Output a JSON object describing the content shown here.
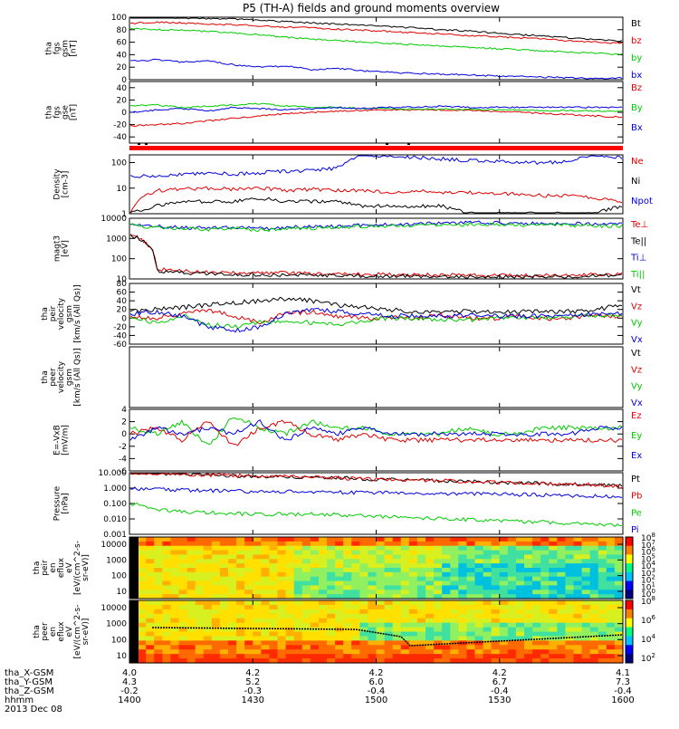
{
  "title": "P5 (TH-A) fields and ground moments overview",
  "panels": [
    {
      "id": "fgs_gsm",
      "type": "line",
      "ylabel": [
        "tha",
        "fgs",
        "gsm",
        "[nT]"
      ],
      "ylim": [
        0,
        100
      ],
      "ticks": [
        "0",
        "20",
        "40",
        "60",
        "80",
        "100"
      ],
      "legend": [
        {
          "text": "Bt",
          "color": "#000000"
        },
        {
          "text": "bz",
          "color": "#e00000"
        },
        {
          "text": "by",
          "color": "#00cc00"
        },
        {
          "text": "bx",
          "color": "#0000dd"
        }
      ],
      "series": [
        {
          "name": "Bt",
          "color": "#000000",
          "values": [
            100,
            100,
            99,
            98,
            97,
            95,
            93,
            91,
            89,
            87,
            85,
            83,
            80,
            78,
            75,
            72,
            70,
            67,
            64,
            62
          ]
        },
        {
          "name": "bz",
          "color": "#e00000",
          "values": [
            90,
            92,
            91,
            89,
            88,
            86,
            84,
            83,
            81,
            79,
            77,
            75,
            73,
            71,
            69,
            67,
            65,
            62,
            60,
            58
          ]
        },
        {
          "name": "by",
          "color": "#00cc00",
          "values": [
            82,
            80,
            79,
            77,
            75,
            72,
            68,
            65,
            63,
            60,
            58,
            56,
            54,
            52,
            50,
            48,
            46,
            44,
            42,
            40
          ]
        },
        {
          "name": "bx",
          "color": "#0000dd",
          "values": [
            30,
            32,
            28,
            30,
            24,
            20,
            22,
            16,
            18,
            14,
            12,
            10,
            9,
            8,
            6,
            5,
            4,
            3,
            2,
            3
          ]
        }
      ]
    },
    {
      "id": "fgs_gse",
      "type": "line",
      "ylabel": [
        "tha",
        "fgs",
        "gse",
        "[nT]"
      ],
      "ylim": [
        -50,
        50
      ],
      "ticks": [
        "-40",
        "-20",
        "0",
        "20",
        "40"
      ],
      "legend": [
        {
          "text": "Bz",
          "color": "#e00000"
        },
        {
          "text": "By",
          "color": "#00cc00"
        },
        {
          "text": "Bx",
          "color": "#0000dd"
        }
      ],
      "series": [
        {
          "name": "Bz",
          "color": "#e00000",
          "values": [
            -22,
            -20,
            -18,
            -14,
            -10,
            -6,
            -2,
            0,
            2,
            3,
            4,
            4,
            4,
            3,
            2,
            0,
            -2,
            -4,
            -6,
            -8
          ]
        },
        {
          "name": "By",
          "color": "#00cc00",
          "values": [
            10,
            12,
            8,
            10,
            12,
            14,
            10,
            8,
            8,
            6,
            6,
            5,
            5,
            5,
            4,
            4,
            3,
            3,
            2,
            2
          ]
        },
        {
          "name": "Bx",
          "color": "#0000dd",
          "values": [
            0,
            4,
            6,
            2,
            8,
            6,
            4,
            6,
            8,
            6,
            8,
            8,
            10,
            8,
            8,
            8,
            8,
            8,
            8,
            8
          ]
        }
      ]
    },
    {
      "id": "density",
      "type": "line",
      "ylabel": [
        "Density",
        "[cm-3]"
      ],
      "ylim": [
        1,
        200
      ],
      "log": true,
      "ticks": [
        "1",
        "10",
        "100"
      ],
      "legend": [
        {
          "text": "Ne",
          "color": "#e00000"
        },
        {
          "text": "Ni",
          "color": "#000000"
        },
        {
          "text": "Npot",
          "color": "#0000dd"
        }
      ],
      "series": [
        {
          "name": "Ne",
          "color": "#e00000",
          "values": [
            1,
            8,
            9,
            10,
            9,
            10,
            8,
            9,
            8,
            8,
            7,
            8,
            7,
            7,
            6,
            6,
            5,
            5,
            4,
            3
          ]
        },
        {
          "name": "Ni",
          "color": "#000000",
          "values": [
            1,
            2,
            3,
            3,
            3,
            4,
            3,
            3,
            3,
            2,
            2,
            2,
            2,
            1,
            1,
            1,
            1,
            1,
            1,
            2
          ]
        },
        {
          "name": "Npot",
          "color": "#0000dd",
          "values": [
            30,
            30,
            35,
            40,
            35,
            40,
            45,
            50,
            60,
            200,
            180,
            160,
            140,
            120,
            110,
            100,
            100,
            110,
            200,
            150
          ]
        }
      ]
    },
    {
      "id": "temperature",
      "type": "line",
      "ylabel": [
        "magt3",
        "[eV]"
      ],
      "ylim": [
        10,
        10000
      ],
      "log": true,
      "ticks": [
        "10",
        "100",
        "1000",
        "10000"
      ],
      "legend": [
        {
          "text": "Te⊥",
          "color": "#e00000"
        },
        {
          "text": "Te||",
          "color": "#000000"
        },
        {
          "text": "Ti⊥",
          "color": "#0000dd"
        },
        {
          "text": "Ti||",
          "color": "#00cc00"
        }
      ],
      "series": [
        {
          "name": "Te⊥",
          "color": "#e00000",
          "values": [
            1500,
            30,
            25,
            22,
            20,
            20,
            20,
            18,
            18,
            17,
            17,
            16,
            16,
            15,
            15,
            15,
            15,
            15,
            16,
            18
          ]
        },
        {
          "name": "Te||",
          "color": "#000000",
          "values": [
            1500,
            25,
            20,
            18,
            17,
            16,
            16,
            15,
            15,
            14,
            14,
            14,
            13,
            13,
            13,
            13,
            13,
            13,
            14,
            15
          ]
        },
        {
          "name": "Ti⊥",
          "color": "#0000dd",
          "values": [
            5000,
            4000,
            3500,
            3200,
            3800,
            3000,
            3500,
            3800,
            4000,
            4500,
            5000,
            5200,
            5500,
            6000,
            6000,
            5800,
            5500,
            5500,
            5200,
            5000
          ]
        },
        {
          "name": "Ti||",
          "color": "#00cc00",
          "values": [
            4500,
            3500,
            3000,
            2800,
            3200,
            2600,
            3000,
            3200,
            3500,
            4000,
            4200,
            4500,
            4800,
            5000,
            5000,
            4800,
            4500,
            4500,
            4200,
            4000
          ]
        }
      ]
    },
    {
      "id": "peir_velocity",
      "type": "line",
      "ylabel": [
        "tha",
        "peir",
        "velocity",
        "gsm",
        "[km/s (All Qs)]"
      ],
      "ylim": [
        -60,
        80
      ],
      "ticks": [
        "-60",
        "-40",
        "-20",
        "0",
        "20",
        "40",
        "60",
        "80"
      ],
      "legend": [
        {
          "text": "Vt",
          "color": "#000000"
        },
        {
          "text": "Vz",
          "color": "#e00000"
        },
        {
          "text": "Vy",
          "color": "#00cc00"
        },
        {
          "text": "Vx",
          "color": "#0000dd"
        }
      ],
      "series": [
        {
          "name": "Vt",
          "color": "#000000",
          "values": [
            15,
            20,
            25,
            30,
            35,
            40,
            45,
            40,
            30,
            25,
            20,
            15,
            15,
            15,
            15,
            15,
            15,
            15,
            20,
            30
          ]
        },
        {
          "name": "Vz",
          "color": "#e00000",
          "values": [
            5,
            0,
            10,
            20,
            5,
            -10,
            10,
            15,
            5,
            0,
            0,
            0,
            5,
            0,
            0,
            5,
            0,
            0,
            5,
            5
          ]
        },
        {
          "name": "Vy",
          "color": "#00cc00",
          "values": [
            0,
            -10,
            5,
            -15,
            -20,
            -10,
            -5,
            -10,
            -15,
            -5,
            0,
            0,
            -5,
            -5,
            0,
            0,
            0,
            5,
            5,
            10
          ]
        },
        {
          "name": "Vx",
          "color": "#0000dd",
          "values": [
            10,
            15,
            5,
            -20,
            -30,
            -20,
            10,
            20,
            15,
            10,
            5,
            5,
            5,
            5,
            5,
            5,
            5,
            5,
            10,
            10
          ]
        }
      ]
    },
    {
      "id": "peer_velocity",
      "type": "line",
      "ylabel": [
        "tha",
        "peer",
        "velocity",
        "gsm",
        "[km/s (All Qs)]"
      ],
      "ylim": [
        0,
        1
      ],
      "ticks": [],
      "legend": [
        {
          "text": "Vt",
          "color": "#000000"
        },
        {
          "text": "Vz",
          "color": "#e00000"
        },
        {
          "text": "Vy",
          "color": "#00cc00"
        },
        {
          "text": "Vx",
          "color": "#0000dd"
        }
      ],
      "series": []
    },
    {
      "id": "efield",
      "type": "line",
      "ylabel": [
        "E=-VxB",
        "[mV/m]"
      ],
      "ylim": [
        -6,
        4
      ],
      "ticks": [
        "-6",
        "-4",
        "-2",
        "0",
        "2",
        "4"
      ],
      "legend": [
        {
          "text": "Ez",
          "color": "#e00000"
        },
        {
          "text": "Ey",
          "color": "#00cc00"
        },
        {
          "text": "Ex",
          "color": "#0000dd"
        }
      ],
      "series": [
        {
          "name": "Ez",
          "color": "#e00000",
          "values": [
            0,
            1,
            -1,
            2,
            -2,
            1,
            2,
            0,
            -1,
            0,
            -1,
            -1,
            -1,
            -1,
            -1,
            -1,
            -1,
            -1,
            -1,
            -1
          ]
        },
        {
          "name": "Ey",
          "color": "#00cc00",
          "values": [
            1,
            0,
            2,
            -2,
            3,
            1,
            0,
            2,
            1,
            1,
            0,
            0,
            0,
            1,
            0,
            0,
            1,
            1,
            1,
            1
          ]
        },
        {
          "name": "Ex",
          "color": "#0000dd",
          "values": [
            -1,
            1,
            0,
            1,
            0,
            2,
            -1,
            1,
            0,
            1,
            0,
            0,
            0,
            0,
            0,
            0,
            0,
            0,
            1,
            1
          ]
        }
      ]
    },
    {
      "id": "pressure",
      "type": "line",
      "ylabel": [
        "Pressure",
        "[nPa]"
      ],
      "ylim": [
        0.001,
        10
      ],
      "log": true,
      "ticks": [
        "0.001",
        "0.010",
        "0.100",
        "1.000",
        "10.000"
      ],
      "legend": [
        {
          "text": "Pt",
          "color": "#000000"
        },
        {
          "text": "Pb",
          "color": "#e00000"
        },
        {
          "text": "Pe",
          "color": "#00cc00"
        },
        {
          "text": "Pi",
          "color": "#0000dd"
        }
      ],
      "series": [
        {
          "name": "Pt",
          "color": "#000000",
          "values": [
            10,
            9,
            8,
            7,
            6.5,
            6,
            5.5,
            5,
            4.5,
            4,
            3.6,
            3.3,
            3,
            2.7,
            2.4,
            2.2,
            2,
            1.8,
            1.6,
            1.5
          ]
        },
        {
          "name": "Pb",
          "color": "#e00000",
          "values": [
            10,
            9,
            8,
            7,
            6.5,
            6,
            5.5,
            5,
            4.5,
            4,
            3.6,
            3.3,
            3,
            2.7,
            2.4,
            2.2,
            2,
            1.8,
            1.6,
            1.2
          ]
        },
        {
          "name": "Pe",
          "color": "#00cc00",
          "values": [
            0.1,
            0.04,
            0.03,
            0.025,
            0.022,
            0.02,
            0.02,
            0.02,
            0.018,
            0.016,
            0.014,
            0.012,
            0.01,
            0.009,
            0.008,
            0.007,
            0.006,
            0.005,
            0.004,
            0.004
          ]
        },
        {
          "name": "Pi",
          "color": "#0000dd",
          "values": [
            0.9,
            0.8,
            0.75,
            0.7,
            0.65,
            0.6,
            0.6,
            0.55,
            0.55,
            0.5,
            0.5,
            0.48,
            0.45,
            0.43,
            0.4,
            0.38,
            0.35,
            0.33,
            0.3,
            0.25
          ]
        }
      ]
    },
    {
      "id": "peir_spec",
      "type": "heatmap",
      "ylabel": [
        "tha",
        "peir",
        "en",
        "eflux",
        "eV",
        "[eV/(cm^2-s-",
        "sr-eV)]"
      ],
      "ticks": [
        "10",
        "100",
        "1000",
        "10000"
      ],
      "cbar_ticks": [
        "10^8",
        "10^7",
        "10^6",
        "10^5",
        "10^4",
        "10^3",
        "10^2",
        "10^1",
        "10^0"
      ]
    },
    {
      "id": "peer_spec",
      "type": "heatmap",
      "ylabel": [
        "tha",
        "peer",
        "en",
        "eflux",
        "eV",
        "[eV/(cm^2-s-",
        "sr-eV)]"
      ],
      "ticks": [
        "10",
        "100",
        "1000",
        "10000"
      ],
      "cbar_ticks": [
        "10^8",
        "10^6",
        "10^4",
        "10^2"
      ]
    }
  ],
  "xaxis": {
    "rows": [
      {
        "label": "tha_X-GSM",
        "values": [
          "4.0",
          "4.2",
          "4.2",
          "4.2",
          "4.1"
        ]
      },
      {
        "label": "tha_Y-GSM",
        "values": [
          "4.3",
          "5.2",
          "6.0",
          "6.7",
          "7.3"
        ]
      },
      {
        "label": "tha_Z-GSM",
        "values": [
          "-0.2",
          "-0.3",
          "-0.4",
          "-0.4",
          "-0.4"
        ]
      },
      {
        "label": "hhmm",
        "values": [
          "1400",
          "1430",
          "1500",
          "1530",
          "1600"
        ]
      }
    ],
    "date": "2013 Dec 08"
  }
}
